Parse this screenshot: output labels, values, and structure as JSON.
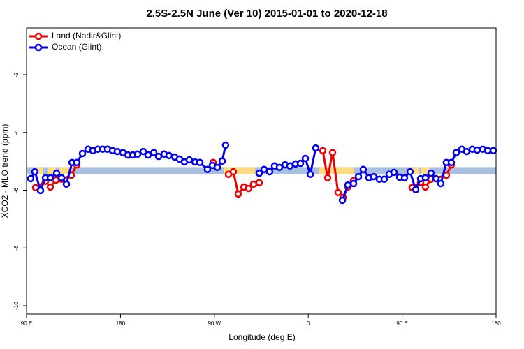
{
  "chart_data": {
    "type": "line",
    "title": "2.5S-2.5N June (Ver 10)   2015-01-01 to 2020-12-18",
    "x_label": "Longitude (deg E)",
    "y_label": "XCO2 - MLO trend (ppm)",
    "xlim": [
      90,
      540
    ],
    "ylim": [
      -10.29,
      -0.38
    ],
    "xticks": [
      {
        "value": 90,
        "label": "90 E"
      },
      {
        "value": 180,
        "label": "180"
      },
      {
        "value": 270,
        "label": "90 W"
      },
      {
        "value": 360,
        "label": "0"
      },
      {
        "value": 450,
        "label": "90 E"
      },
      {
        "value": 540,
        "label": "180"
      }
    ],
    "yticks": [
      -2,
      -4,
      -6,
      -8,
      -10
    ],
    "legend_position": "upper-left",
    "band": {
      "ylim": [
        -5.2,
        -5.45
      ],
      "ocean_color": "#a9bfe0",
      "land_color": "#fddc84",
      "land_ranges": [
        [
          99,
          106
        ],
        [
          110,
          118
        ],
        [
          121,
          132
        ],
        [
          279,
          309
        ],
        [
          370,
          404
        ],
        [
          460,
          466
        ],
        [
          468,
          476
        ]
      ]
    },
    "series": [
      {
        "name": "Land (Nadir&Glint)",
        "color": "#ee0000",
        "x": [
          98.7,
          108.1,
          112.8,
          118.1,
          123.5,
          132.9,
          138.2,
          null,
          268.8,
          null,
          283.5,
          288.2,
          292.9,
          298.3,
          302.9,
          307.6,
          313.0,
          null,
          373.9,
          378.6,
          383.3,
          388.6,
          393.3,
          398.0,
          403.4,
          null,
          459.6,
          467.7,
          472.3,
          477.7,
          492.4,
          497.1
        ],
        "values": [
          -5.91,
          -5.69,
          -5.89,
          -5.65,
          -5.62,
          -5.48,
          -5.12,
          null,
          -5.04,
          null,
          -5.45,
          -5.36,
          -6.13,
          -5.89,
          -5.94,
          -5.79,
          -5.74,
          null,
          -4.63,
          -5.57,
          -4.7,
          -6.08,
          -6.25,
          -5.89,
          -5.67,
          null,
          -5.91,
          -5.72,
          -5.89,
          -5.62,
          -5.48,
          -5.12
        ]
      },
      {
        "name": "Ocean (Glint)",
        "color": "#0000ee",
        "x": [
          94.0,
          98.0,
          103.4,
          108.1,
          112.8,
          118.8,
          123.5,
          128.2,
          133.6,
          138.2,
          143.6,
          148.9,
          153.6,
          158.3,
          163.0,
          167.7,
          172.4,
          177.0,
          182.4,
          187.1,
          191.8,
          196.5,
          201.8,
          206.5,
          211.9,
          216.6,
          221.9,
          226.6,
          232.0,
          236.6,
          241.3,
          246.0,
          251.4,
          256.1,
          263.4,
          268.1,
          272.8,
          277.5,
          280.8,
          null,
          313.0,
          317.7,
          323.0,
          327.7,
          332.4,
          337.8,
          342.4,
          347.8,
          352.5,
          357.2,
          361.9,
          367.2,
          null,
          392.7,
          398.0,
          403.4,
          408.1,
          412.7,
          418.1,
          422.8,
          428.1,
          432.8,
          437.5,
          442.2,
          447.6,
          452.3,
          457.6,
          463.0,
          467.7,
          472.3,
          477.7,
          482.4,
          487.1,
          492.4,
          497.1,
          501.8,
          507.2,
          511.8,
          517.2,
          521.9,
          527.3,
          532.0,
          537.3
        ],
        "values": [
          -5.6,
          -5.36,
          -6.01,
          -5.57,
          -5.57,
          -5.41,
          -5.57,
          -5.79,
          -5.04,
          -5.04,
          -4.73,
          -4.58,
          -4.63,
          -4.58,
          -4.58,
          -4.58,
          -4.63,
          -4.66,
          -4.7,
          -4.78,
          -4.78,
          -4.75,
          -4.66,
          -4.78,
          -4.7,
          -4.83,
          -4.75,
          -4.8,
          -4.85,
          -4.92,
          -5.02,
          -4.95,
          -5.02,
          -5.04,
          -5.28,
          -5.14,
          -5.21,
          -4.99,
          -4.44,
          null,
          -5.41,
          -5.28,
          -5.36,
          -5.16,
          -5.21,
          -5.12,
          -5.16,
          -5.09,
          -5.07,
          -4.9,
          -5.45,
          -4.54,
          null,
          -6.35,
          -5.82,
          -5.77,
          -5.53,
          -5.28,
          -5.57,
          -5.53,
          -5.62,
          -5.62,
          -5.45,
          -5.38,
          -5.55,
          -5.57,
          -5.36,
          -5.98,
          -5.6,
          -5.57,
          -5.41,
          -5.6,
          -5.77,
          -5.04,
          -5.04,
          -4.7,
          -4.58,
          -4.66,
          -4.58,
          -4.61,
          -4.58,
          -4.63,
          -4.63
        ]
      }
    ]
  }
}
